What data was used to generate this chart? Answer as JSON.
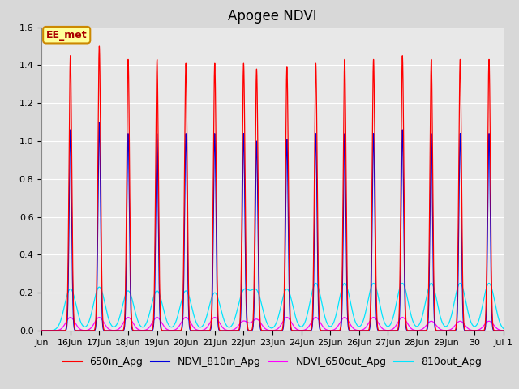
{
  "title": "Apogee NDVI",
  "ylim": [
    0.0,
    1.6
  ],
  "yticks": [
    0.0,
    0.2,
    0.4,
    0.6,
    0.8,
    1.0,
    1.2,
    1.4,
    1.6
  ],
  "xtick_labels": [
    "Jun",
    "16Jun",
    "17Jun",
    "18Jun",
    "19Jun",
    "20Jun",
    "21Jun",
    "22Jun",
    "23Jun",
    "24Jun",
    "25Jun",
    "26Jun",
    "27Jun",
    "28Jun",
    "29Jun",
    "30",
    "Jul 1"
  ],
  "colors": {
    "650in_Apg": "#ff0000",
    "NDVI_810in_Apg": "#0000dd",
    "NDVI_650out_Apg": "#ff00ff",
    "810out_Apg": "#00e5ff"
  },
  "legend_labels": [
    "650in_Apg",
    "NDVI_810in_Apg",
    "NDVI_650out_Apg",
    "810out_Apg"
  ],
  "annotation_text": "EE_met",
  "annotation_color": "#aa0000",
  "annotation_bg": "#ffff99",
  "background_color": "#d8d8d8",
  "plot_bg": "#e8e8e8",
  "grid_color": "#ffffff",
  "title_fontsize": 12,
  "tick_fontsize": 8,
  "legend_fontsize": 9,
  "spike_centers": [
    1.0,
    2.0,
    3.0,
    4.0,
    5.0,
    6.0,
    7.0,
    7.45,
    8.5,
    9.5,
    10.5,
    11.5,
    12.5,
    13.5,
    14.5,
    15.5
  ],
  "peaks_650": [
    1.45,
    1.5,
    1.43,
    1.43,
    1.41,
    1.41,
    1.41,
    1.38,
    1.39,
    1.41,
    1.43,
    1.43,
    1.45,
    1.43,
    1.43,
    1.43
  ],
  "peaks_810": [
    1.06,
    1.1,
    1.04,
    1.04,
    1.04,
    1.04,
    1.04,
    1.0,
    1.01,
    1.04,
    1.04,
    1.04,
    1.06,
    1.04,
    1.04,
    1.04
  ],
  "peaks_650out": [
    0.07,
    0.07,
    0.07,
    0.07,
    0.07,
    0.07,
    0.05,
    0.06,
    0.07,
    0.07,
    0.07,
    0.07,
    0.07,
    0.05,
    0.05,
    0.05
  ],
  "peaks_810out": [
    0.22,
    0.23,
    0.21,
    0.21,
    0.21,
    0.2,
    0.2,
    0.2,
    0.22,
    0.25,
    0.25,
    0.25,
    0.25,
    0.25,
    0.25,
    0.25
  ]
}
